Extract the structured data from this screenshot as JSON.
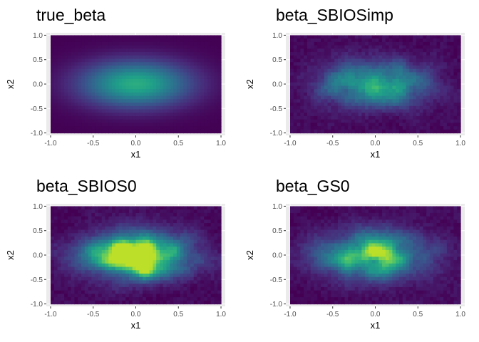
{
  "chart_data": [
    {
      "type": "heatmap",
      "title": "true_beta",
      "xlabel": "x1",
      "ylabel": "x2",
      "xlim": [
        -1.05,
        1.05
      ],
      "ylim": [
        -1.05,
        1.05
      ],
      "xticks": [
        -1.0,
        -0.5,
        0.0,
        0.5,
        1.0
      ],
      "yticks": [
        -1.0,
        -0.5,
        0.0,
        0.5,
        1.0
      ],
      "xtick_labels": [
        "-1.0",
        "-0.5",
        "0.0",
        "0.5",
        "1.0"
      ],
      "ytick_labels": [
        "-1.0",
        "-0.5",
        "0.0",
        "0.5",
        "1.0"
      ],
      "colormap": "viridis",
      "grid": true,
      "legend": "none",
      "field": {
        "pattern": "smooth gaussian",
        "peak_level": 0.62,
        "center": [
          0.0,
          0.0
        ],
        "spread": [
          0.45,
          0.33
        ]
      }
    },
    {
      "type": "heatmap",
      "title": "beta_SBIOSimp",
      "xlabel": "x1",
      "ylabel": "x2",
      "xlim": [
        -1.05,
        1.05
      ],
      "ylim": [
        -1.05,
        1.05
      ],
      "xticks": [
        -1.0,
        -0.5,
        0.0,
        0.5,
        1.0
      ],
      "yticks": [
        -1.0,
        -0.5,
        0.0,
        0.5,
        1.0
      ],
      "xtick_labels": [
        "-1.0",
        "-0.5",
        "0.0",
        "0.5",
        "1.0"
      ],
      "ytick_labels": [
        "-1.0",
        "-0.5",
        "0.0",
        "0.5",
        "1.0"
      ],
      "colormap": "viridis",
      "grid": true,
      "legend": "none",
      "field": {
        "pattern": "noisy estimate",
        "peak_level": 0.45,
        "center": [
          0.0,
          0.0
        ],
        "spread": [
          0.4,
          0.3
        ]
      }
    },
    {
      "type": "heatmap",
      "title": "beta_SBIOS0",
      "xlabel": "x1",
      "ylabel": "x2",
      "xlim": [
        -1.05,
        1.05
      ],
      "ylim": [
        -1.05,
        1.05
      ],
      "xticks": [
        -1.0,
        -0.5,
        0.0,
        0.5,
        1.0
      ],
      "yticks": [
        -1.0,
        -0.5,
        0.0,
        0.5,
        1.0
      ],
      "xtick_labels": [
        "-1.0",
        "-0.5",
        "0.0",
        "0.5",
        "1.0"
      ],
      "ytick_labels": [
        "-1.0",
        "-0.5",
        "0.0",
        "0.5",
        "1.0"
      ],
      "colormap": "viridis",
      "grid": true,
      "legend": "none",
      "field": {
        "pattern": "noisy estimate with hot spots",
        "peak_level": 0.75,
        "center": [
          0.0,
          0.0
        ],
        "spread": [
          0.4,
          0.3
        ]
      }
    },
    {
      "type": "heatmap",
      "title": "beta_GS0",
      "xlabel": "x1",
      "ylabel": "x2",
      "xlim": [
        -1.05,
        1.05
      ],
      "ylim": [
        -1.05,
        1.05
      ],
      "xticks": [
        -1.0,
        -0.5,
        0.0,
        0.5,
        1.0
      ],
      "yticks": [
        -1.0,
        -0.5,
        0.0,
        0.5,
        1.0
      ],
      "xtick_labels": [
        "-1.0",
        "-0.5",
        "0.0",
        "0.5",
        "1.0"
      ],
      "ytick_labels": [
        "-1.0",
        "-0.5",
        "0.0",
        "0.5",
        "1.0"
      ],
      "colormap": "viridis",
      "grid": true,
      "legend": "none",
      "field": {
        "pattern": "noisy estimate",
        "peak_level": 0.55,
        "center": [
          0.0,
          0.0
        ],
        "spread": [
          0.42,
          0.31
        ]
      }
    }
  ],
  "colors": {
    "panel_background": "#ebebeb",
    "gridline": "#ffffff",
    "tick_text": "#4d4d4d",
    "viridis_low": "#440154",
    "viridis_mid": "#21918c",
    "viridis_high": "#fde725"
  }
}
